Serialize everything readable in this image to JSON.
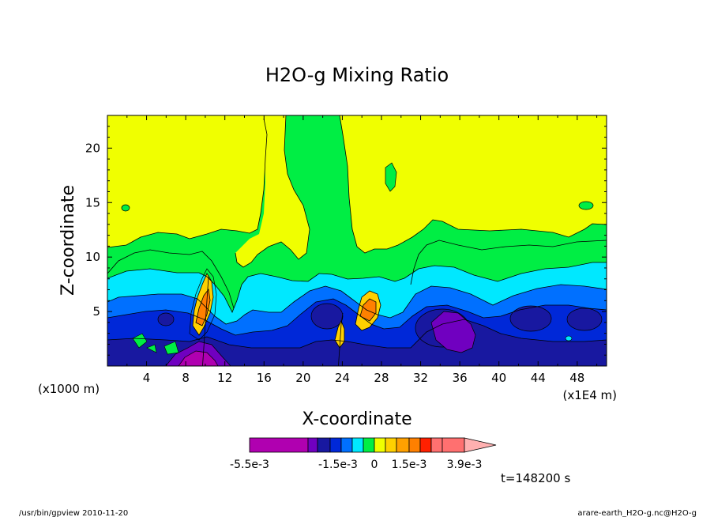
{
  "chart_data": {
    "type": "heatmap",
    "title": "H2O-g Mixing Ratio",
    "xlabel": "X-coordinate",
    "ylabel": "Z-coordinate",
    "x_unit": "(x1E4 m)",
    "z_unit": "(x1000 m)",
    "x_ticks": [
      4,
      8,
      12,
      16,
      20,
      24,
      28,
      32,
      36,
      40,
      44,
      48
    ],
    "y_ticks": [
      5,
      10,
      15,
      20
    ],
    "xlim": [
      0,
      51
    ],
    "ylim": [
      0,
      23
    ],
    "colorbar_labels": [
      "-5.5e-3",
      "-1.5e-3",
      "0",
      "1.5e-3",
      "3.9e-3"
    ],
    "colorbar_levels": [
      "-5.5e-3",
      "-4.5e-3",
      "-3.5e-3",
      "-2.5e-3",
      "-1.5e-3",
      "-1.0e-3",
      "-5e-4",
      "0",
      "5e-4",
      "1.0e-3",
      "1.5e-3",
      "2.0e-3",
      "2.5e-3",
      "3.9e-3",
      "5.0e-3"
    ],
    "colorbar_colors": [
      "#b000b0",
      "#b000b0",
      "#b000b0",
      "#7000c0",
      "#1818a0",
      "#0028d8",
      "#0070ff",
      "#00e8ff",
      "#00ee44",
      "#f0ff00",
      "#ffd000",
      "#ffa000",
      "#ff8000",
      "#ff2000",
      "#ff7070",
      "#ffb0b0"
    ]
  },
  "time_label": "t=148200 s",
  "footer_left": "/usr/bin/gpview  2010-11-20",
  "footer_right": "arare-earth_H2O-g.nc@H2O-g"
}
